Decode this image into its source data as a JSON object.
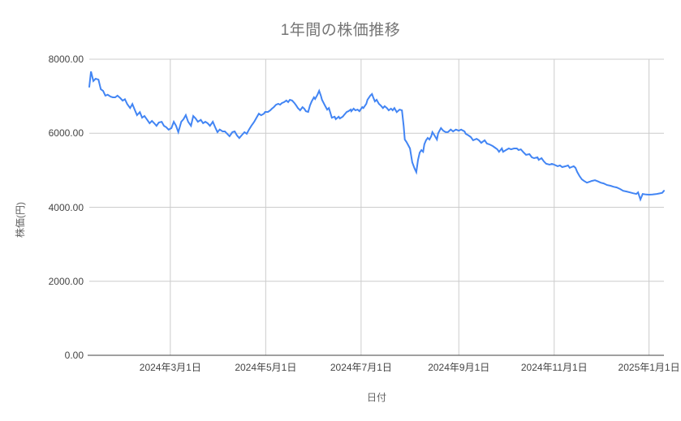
{
  "chart_data": {
    "type": "line",
    "title": "1年間の株価推移",
    "xlabel": "日付",
    "ylabel": "株価(円)",
    "ylim": [
      0,
      8000
    ],
    "grid": true,
    "legend": "none",
    "series_name": "株価",
    "series_color": "#4285f4",
    "gridline_color": "#cccccc",
    "baseline_color": "#424242",
    "y_ticks": [
      {
        "label": "0.00",
        "value": 0
      },
      {
        "label": "2000.00",
        "value": 2000
      },
      {
        "label": "4000.00",
        "value": 4000
      },
      {
        "label": "6000.00",
        "value": 6000
      },
      {
        "label": "8000.00",
        "value": 8000
      }
    ],
    "x_ticks": [
      {
        "label": "2024年3月1日",
        "t": 0.141
      },
      {
        "label": "2024年5月1日",
        "t": 0.307
      },
      {
        "label": "2024年7月1日",
        "t": 0.473
      },
      {
        "label": "2024年9月1日",
        "t": 0.643
      },
      {
        "label": "2024年11月1日",
        "t": 0.809
      },
      {
        "label": "2025年1月1日",
        "t": 0.974
      }
    ],
    "points": [
      [
        0.0,
        7255
      ],
      [
        0.003,
        7670
      ],
      [
        0.007,
        7410
      ],
      [
        0.011,
        7475
      ],
      [
        0.016,
        7450
      ],
      [
        0.02,
        7190
      ],
      [
        0.024,
        7145
      ],
      [
        0.028,
        7015
      ],
      [
        0.032,
        7040
      ],
      [
        0.037,
        6990
      ],
      [
        0.041,
        6970
      ],
      [
        0.045,
        6970
      ],
      [
        0.049,
        7015
      ],
      [
        0.054,
        6950
      ],
      [
        0.058,
        6880
      ],
      [
        0.062,
        6920
      ],
      [
        0.066,
        6790
      ],
      [
        0.071,
        6680
      ],
      [
        0.075,
        6790
      ],
      [
        0.079,
        6640
      ],
      [
        0.083,
        6490
      ],
      [
        0.088,
        6570
      ],
      [
        0.092,
        6420
      ],
      [
        0.096,
        6465
      ],
      [
        0.1,
        6380
      ],
      [
        0.105,
        6270
      ],
      [
        0.109,
        6335
      ],
      [
        0.113,
        6270
      ],
      [
        0.117,
        6200
      ],
      [
        0.121,
        6290
      ],
      [
        0.126,
        6310
      ],
      [
        0.13,
        6200
      ],
      [
        0.134,
        6160
      ],
      [
        0.138,
        6095
      ],
      [
        0.143,
        6140
      ],
      [
        0.147,
        6310
      ],
      [
        0.151,
        6200
      ],
      [
        0.155,
        6030
      ],
      [
        0.16,
        6310
      ],
      [
        0.164,
        6380
      ],
      [
        0.168,
        6490
      ],
      [
        0.172,
        6310
      ],
      [
        0.177,
        6200
      ],
      [
        0.181,
        6465
      ],
      [
        0.185,
        6400
      ],
      [
        0.189,
        6310
      ],
      [
        0.194,
        6360
      ],
      [
        0.198,
        6270
      ],
      [
        0.202,
        6310
      ],
      [
        0.206,
        6270
      ],
      [
        0.21,
        6200
      ],
      [
        0.215,
        6310
      ],
      [
        0.219,
        6160
      ],
      [
        0.223,
        6030
      ],
      [
        0.227,
        6100
      ],
      [
        0.232,
        6050
      ],
      [
        0.236,
        6050
      ],
      [
        0.24,
        5985
      ],
      [
        0.244,
        5920
      ],
      [
        0.249,
        6030
      ],
      [
        0.253,
        6050
      ],
      [
        0.257,
        5940
      ],
      [
        0.261,
        5870
      ],
      [
        0.266,
        5960
      ],
      [
        0.27,
        6030
      ],
      [
        0.274,
        5985
      ],
      [
        0.278,
        6100
      ],
      [
        0.282,
        6200
      ],
      [
        0.287,
        6310
      ],
      [
        0.291,
        6420
      ],
      [
        0.295,
        6530
      ],
      [
        0.299,
        6485
      ],
      [
        0.304,
        6530
      ],
      [
        0.306,
        6575
      ],
      [
        0.311,
        6575
      ],
      [
        0.315,
        6620
      ],
      [
        0.318,
        6665
      ],
      [
        0.321,
        6705
      ],
      [
        0.325,
        6770
      ],
      [
        0.329,
        6795
      ],
      [
        0.332,
        6770
      ],
      [
        0.335,
        6815
      ],
      [
        0.339,
        6840
      ],
      [
        0.343,
        6885
      ],
      [
        0.346,
        6840
      ],
      [
        0.349,
        6905
      ],
      [
        0.353,
        6885
      ],
      [
        0.357,
        6815
      ],
      [
        0.36,
        6750
      ],
      [
        0.363,
        6680
      ],
      [
        0.367,
        6620
      ],
      [
        0.371,
        6705
      ],
      [
        0.374,
        6665
      ],
      [
        0.377,
        6595
      ],
      [
        0.381,
        6575
      ],
      [
        0.384,
        6750
      ],
      [
        0.387,
        6860
      ],
      [
        0.391,
        6970
      ],
      [
        0.393,
        6925
      ],
      [
        0.397,
        7040
      ],
      [
        0.4,
        7145
      ],
      [
        0.403,
        7015
      ],
      [
        0.405,
        6905
      ],
      [
        0.41,
        6750
      ],
      [
        0.414,
        6640
      ],
      [
        0.417,
        6680
      ],
      [
        0.419,
        6575
      ],
      [
        0.422,
        6420
      ],
      [
        0.427,
        6445
      ],
      [
        0.429,
        6380
      ],
      [
        0.434,
        6445
      ],
      [
        0.436,
        6400
      ],
      [
        0.441,
        6445
      ],
      [
        0.443,
        6485
      ],
      [
        0.448,
        6575
      ],
      [
        0.451,
        6595
      ],
      [
        0.455,
        6640
      ],
      [
        0.456,
        6595
      ],
      [
        0.46,
        6665
      ],
      [
        0.463,
        6620
      ],
      [
        0.467,
        6640
      ],
      [
        0.47,
        6595
      ],
      [
        0.475,
        6705
      ],
      [
        0.477,
        6680
      ],
      [
        0.482,
        6795
      ],
      [
        0.484,
        6905
      ],
      [
        0.489,
        7015
      ],
      [
        0.492,
        7060
      ],
      [
        0.494,
        6970
      ],
      [
        0.497,
        6860
      ],
      [
        0.5,
        6905
      ],
      [
        0.504,
        6795
      ],
      [
        0.507,
        6750
      ],
      [
        0.511,
        6680
      ],
      [
        0.514,
        6730
      ],
      [
        0.518,
        6680
      ],
      [
        0.521,
        6620
      ],
      [
        0.525,
        6665
      ],
      [
        0.528,
        6620
      ],
      [
        0.531,
        6680
      ],
      [
        0.535,
        6570
      ],
      [
        0.54,
        6640
      ],
      [
        0.544,
        6620
      ],
      [
        0.547,
        6200
      ],
      [
        0.549,
        5830
      ],
      [
        0.552,
        5765
      ],
      [
        0.555,
        5680
      ],
      [
        0.558,
        5590
      ],
      [
        0.562,
        5215
      ],
      [
        0.566,
        5050
      ],
      [
        0.569,
        4950
      ],
      [
        0.572,
        5280
      ],
      [
        0.575,
        5480
      ],
      [
        0.578,
        5545
      ],
      [
        0.581,
        5500
      ],
      [
        0.583,
        5700
      ],
      [
        0.586,
        5810
      ],
      [
        0.589,
        5875
      ],
      [
        0.592,
        5830
      ],
      [
        0.595,
        5920
      ],
      [
        0.597,
        6030
      ],
      [
        0.6,
        5960
      ],
      [
        0.605,
        5830
      ],
      [
        0.607,
        6000
      ],
      [
        0.612,
        6140
      ],
      [
        0.616,
        6070
      ],
      [
        0.62,
        6030
      ],
      [
        0.624,
        6030
      ],
      [
        0.629,
        6100
      ],
      [
        0.633,
        6050
      ],
      [
        0.638,
        6100
      ],
      [
        0.643,
        6070
      ],
      [
        0.647,
        6100
      ],
      [
        0.653,
        6050
      ],
      [
        0.655,
        5985
      ],
      [
        0.66,
        5940
      ],
      [
        0.664,
        5895
      ],
      [
        0.668,
        5810
      ],
      [
        0.674,
        5850
      ],
      [
        0.678,
        5810
      ],
      [
        0.682,
        5740
      ],
      [
        0.688,
        5810
      ],
      [
        0.692,
        5720
      ],
      [
        0.696,
        5700
      ],
      [
        0.702,
        5655
      ],
      [
        0.706,
        5610
      ],
      [
        0.71,
        5565
      ],
      [
        0.713,
        5500
      ],
      [
        0.718,
        5590
      ],
      [
        0.72,
        5500
      ],
      [
        0.725,
        5545
      ],
      [
        0.73,
        5590
      ],
      [
        0.734,
        5565
      ],
      [
        0.739,
        5590
      ],
      [
        0.744,
        5590
      ],
      [
        0.747,
        5545
      ],
      [
        0.751,
        5565
      ],
      [
        0.756,
        5480
      ],
      [
        0.76,
        5415
      ],
      [
        0.766,
        5435
      ],
      [
        0.77,
        5350
      ],
      [
        0.774,
        5325
      ],
      [
        0.78,
        5350
      ],
      [
        0.782,
        5280
      ],
      [
        0.787,
        5325
      ],
      [
        0.791,
        5240
      ],
      [
        0.795,
        5175
      ],
      [
        0.801,
        5150
      ],
      [
        0.805,
        5175
      ],
      [
        0.809,
        5150
      ],
      [
        0.815,
        5110
      ],
      [
        0.819,
        5130
      ],
      [
        0.823,
        5085
      ],
      [
        0.829,
        5110
      ],
      [
        0.833,
        5130
      ],
      [
        0.836,
        5065
      ],
      [
        0.839,
        5085
      ],
      [
        0.843,
        5110
      ],
      [
        0.846,
        5065
      ],
      [
        0.849,
        4955
      ],
      [
        0.853,
        4845
      ],
      [
        0.857,
        4755
      ],
      [
        0.861,
        4710
      ],
      [
        0.866,
        4665
      ],
      [
        0.871,
        4690
      ],
      [
        0.874,
        4710
      ],
      [
        0.88,
        4730
      ],
      [
        0.885,
        4700
      ],
      [
        0.89,
        4665
      ],
      [
        0.895,
        4645
      ],
      [
        0.901,
        4600
      ],
      [
        0.907,
        4580
      ],
      [
        0.912,
        4555
      ],
      [
        0.918,
        4535
      ],
      [
        0.924,
        4490
      ],
      [
        0.929,
        4445
      ],
      [
        0.935,
        4425
      ],
      [
        0.941,
        4400
      ],
      [
        0.946,
        4380
      ],
      [
        0.952,
        4360
      ],
      [
        0.955,
        4400
      ],
      [
        0.959,
        4210
      ],
      [
        0.963,
        4360
      ],
      [
        0.969,
        4345
      ],
      [
        0.974,
        4340
      ],
      [
        0.98,
        4345
      ],
      [
        0.986,
        4355
      ],
      [
        0.991,
        4370
      ],
      [
        0.997,
        4390
      ],
      [
        1.0,
        4445
      ]
    ]
  }
}
